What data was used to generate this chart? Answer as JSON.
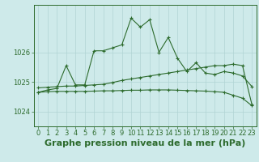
{
  "background_color": "#ceeaea",
  "grid_color": "#b0d4d4",
  "line_color": "#2d6b2d",
  "title": "Graphe pression niveau de la mer (hPa)",
  "xlim": [
    -0.5,
    23.5
  ],
  "ylim": [
    1023.5,
    1027.6
  ],
  "yticks": [
    1024,
    1025,
    1026
  ],
  "xticks": [
    0,
    1,
    2,
    3,
    4,
    5,
    6,
    7,
    8,
    9,
    10,
    11,
    12,
    13,
    14,
    15,
    16,
    17,
    18,
    19,
    20,
    21,
    22,
    23
  ],
  "line1": [
    1024.65,
    1024.73,
    1024.78,
    1025.55,
    1024.9,
    1024.9,
    1026.05,
    1026.05,
    1026.15,
    1026.25,
    1027.15,
    1026.85,
    1027.1,
    1026.0,
    1026.5,
    1025.8,
    1025.35,
    1025.65,
    1025.3,
    1025.25,
    1025.35,
    1025.3,
    1025.2,
    1024.85
  ],
  "line2": [
    1024.8,
    1024.82,
    1024.84,
    1024.86,
    1024.86,
    1024.88,
    1024.9,
    1024.92,
    1024.98,
    1025.05,
    1025.1,
    1025.15,
    1025.2,
    1025.25,
    1025.3,
    1025.35,
    1025.4,
    1025.45,
    1025.5,
    1025.55,
    1025.55,
    1025.6,
    1025.55,
    1024.25
  ],
  "line3": [
    1024.65,
    1024.67,
    1024.68,
    1024.68,
    1024.68,
    1024.68,
    1024.69,
    1024.7,
    1024.7,
    1024.71,
    1024.72,
    1024.72,
    1024.73,
    1024.73,
    1024.73,
    1024.72,
    1024.71,
    1024.7,
    1024.69,
    1024.67,
    1024.65,
    1024.55,
    1024.45,
    1024.2
  ],
  "title_fontsize": 8,
  "tick_fontsize": 6
}
